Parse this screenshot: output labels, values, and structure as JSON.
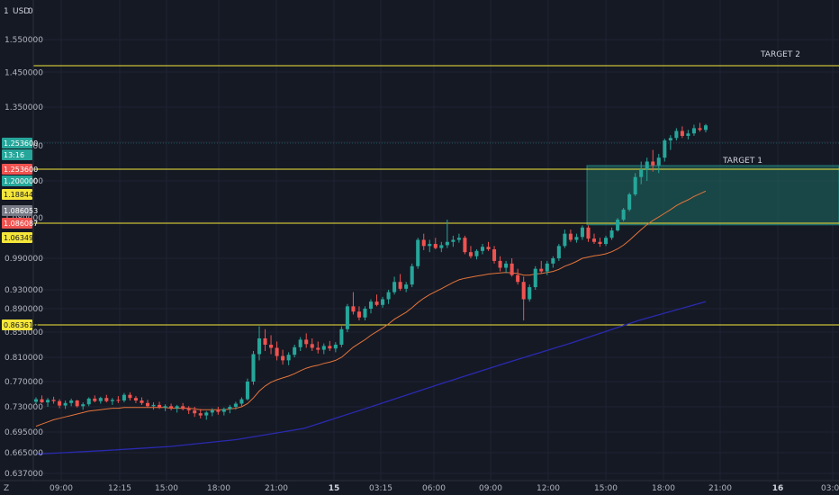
{
  "header": {
    "currency": "USD",
    "left_value": "1",
    "right_value": "0"
  },
  "timeframe_badge": "Z",
  "annotations": {
    "target1": "TARGET 1",
    "target2": "TARGET 2"
  },
  "colors": {
    "background": "#151924",
    "grid": "#1f2433",
    "up": "#26a69a",
    "down": "#ef5350",
    "ema_fast": "#e5743a",
    "ema_slow": "#2a2ab0",
    "level_line": "#f5e63a",
    "zone_fill": "#1e6b63",
    "text": "#b2b5be"
  },
  "chart_data": {
    "type": "candlestick",
    "title": "",
    "currency": "USD",
    "ylim": [
      0.627,
      1.6
    ],
    "y_ticks": [
      "1.550000",
      "1.450000",
      "1.350000",
      "1.250000",
      "1.200000",
      "1.080000",
      "0.990000",
      "0.930000",
      "0.890000",
      "0.850000",
      "0.810000",
      "0.770000",
      "0.730000",
      "0.695000",
      "0.665000",
      "0.637000"
    ],
    "x_ticks": [
      {
        "label": "09:00",
        "bold": false
      },
      {
        "label": "12:15",
        "bold": false
      },
      {
        "label": "15:00",
        "bold": false
      },
      {
        "label": "18:00",
        "bold": false
      },
      {
        "label": "21:00",
        "bold": false
      },
      {
        "label": "15",
        "bold": true
      },
      {
        "label": "03:15",
        "bold": false
      },
      {
        "label": "06:00",
        "bold": false
      },
      {
        "label": "09:00",
        "bold": false
      },
      {
        "label": "12:00",
        "bold": false
      },
      {
        "label": "15:00",
        "bold": false
      },
      {
        "label": "18:00",
        "bold": false
      },
      {
        "label": "21:00",
        "bold": false
      },
      {
        "label": "16",
        "bold": true
      },
      {
        "label": "03:00",
        "bold": false
      }
    ],
    "levels": [
      {
        "value": 1.469078,
        "label": "1.469078"
      },
      {
        "value": 1.25368,
        "label": "1.253680"
      },
      {
        "value": 1.086087,
        "label": "1.086087"
      },
      {
        "value": 0.863619,
        "label": "0.863619"
      }
    ],
    "price_tags": [
      {
        "value": 1.2536,
        "label": "1.253600",
        "color": "#26a69a"
      },
      {
        "value": 1.2359,
        "label": "13:16",
        "color": "#26a69a"
      },
      {
        "value": 1.2536,
        "label": "1.253600",
        "color": "#ef5350"
      },
      {
        "value": 1.2,
        "label": "1.200000",
        "color": "#26a69a"
      },
      {
        "value": 1.188441,
        "label": "1.188441",
        "color": "#f5e63a"
      },
      {
        "value": 1.086053,
        "label": "1.086053",
        "color": "#787b86"
      },
      {
        "value": 1.086087,
        "label": "1.086087",
        "color": "#ef5350"
      },
      {
        "value": 1.063499,
        "label": "1.063499",
        "color": "#f5e63a"
      },
      {
        "value": 0.863619,
        "label": "0.863619",
        "color": "#f5e63a"
      }
    ],
    "target_zone": {
      "y_top": 1.2,
      "y_bottom": 1.09
    },
    "candles": [
      [
        0.738,
        0.745,
        0.734,
        0.742
      ],
      [
        0.742,
        0.748,
        0.736,
        0.737
      ],
      [
        0.737,
        0.744,
        0.73,
        0.741
      ],
      [
        0.741,
        0.746,
        0.735,
        0.739
      ],
      [
        0.739,
        0.742,
        0.728,
        0.732
      ],
      [
        0.732,
        0.74,
        0.727,
        0.736
      ],
      [
        0.736,
        0.743,
        0.731,
        0.74
      ],
      [
        0.74,
        0.741,
        0.729,
        0.731
      ],
      [
        0.731,
        0.737,
        0.726,
        0.734
      ],
      [
        0.734,
        0.745,
        0.731,
        0.743
      ],
      [
        0.743,
        0.748,
        0.737,
        0.739
      ],
      [
        0.739,
        0.746,
        0.735,
        0.744
      ],
      [
        0.744,
        0.749,
        0.737,
        0.739
      ],
      [
        0.739,
        0.744,
        0.733,
        0.741
      ],
      [
        0.741,
        0.747,
        0.736,
        0.74
      ],
      [
        0.74,
        0.752,
        0.737,
        0.749
      ],
      [
        0.749,
        0.753,
        0.74,
        0.744
      ],
      [
        0.744,
        0.747,
        0.736,
        0.74
      ],
      [
        0.74,
        0.745,
        0.733,
        0.736
      ],
      [
        0.736,
        0.741,
        0.729,
        0.731
      ],
      [
        0.731,
        0.737,
        0.726,
        0.733
      ],
      [
        0.733,
        0.738,
        0.727,
        0.729
      ],
      [
        0.729,
        0.734,
        0.724,
        0.731
      ],
      [
        0.731,
        0.735,
        0.725,
        0.728
      ],
      [
        0.728,
        0.733,
        0.722,
        0.731
      ],
      [
        0.731,
        0.736,
        0.725,
        0.727
      ],
      [
        0.727,
        0.731,
        0.72,
        0.725
      ],
      [
        0.725,
        0.73,
        0.716,
        0.721
      ],
      [
        0.721,
        0.727,
        0.714,
        0.718
      ],
      [
        0.718,
        0.724,
        0.712,
        0.722
      ],
      [
        0.722,
        0.728,
        0.717,
        0.725
      ],
      [
        0.725,
        0.73,
        0.719,
        0.723
      ],
      [
        0.723,
        0.729,
        0.718,
        0.727
      ],
      [
        0.727,
        0.733,
        0.721,
        0.73
      ],
      [
        0.73,
        0.738,
        0.726,
        0.735
      ],
      [
        0.735,
        0.745,
        0.731,
        0.742
      ],
      [
        0.742,
        0.775,
        0.74,
        0.77
      ],
      [
        0.77,
        0.82,
        0.765,
        0.815
      ],
      [
        0.815,
        0.86,
        0.805,
        0.84
      ],
      [
        0.84,
        0.855,
        0.82,
        0.83
      ],
      [
        0.83,
        0.845,
        0.815,
        0.825
      ],
      [
        0.825,
        0.835,
        0.805,
        0.812
      ],
      [
        0.812,
        0.822,
        0.798,
        0.805
      ],
      [
        0.805,
        0.818,
        0.797,
        0.814
      ],
      [
        0.814,
        0.83,
        0.81,
        0.826
      ],
      [
        0.826,
        0.842,
        0.82,
        0.838
      ],
      [
        0.838,
        0.848,
        0.825,
        0.831
      ],
      [
        0.831,
        0.84,
        0.82,
        0.825
      ],
      [
        0.825,
        0.835,
        0.816,
        0.822
      ],
      [
        0.822,
        0.832,
        0.815,
        0.828
      ],
      [
        0.828,
        0.836,
        0.82,
        0.824
      ],
      [
        0.824,
        0.834,
        0.818,
        0.83
      ],
      [
        0.83,
        0.86,
        0.826,
        0.855
      ],
      [
        0.855,
        0.9,
        0.85,
        0.895
      ],
      [
        0.895,
        0.925,
        0.88,
        0.885
      ],
      [
        0.885,
        0.895,
        0.87,
        0.875
      ],
      [
        0.875,
        0.895,
        0.87,
        0.89
      ],
      [
        0.89,
        0.91,
        0.882,
        0.905
      ],
      [
        0.905,
        0.92,
        0.895,
        0.898
      ],
      [
        0.898,
        0.915,
        0.892,
        0.91
      ],
      [
        0.91,
        0.93,
        0.9,
        0.925
      ],
      [
        0.925,
        0.955,
        0.92,
        0.945
      ],
      [
        0.945,
        0.96,
        0.928,
        0.932
      ],
      [
        0.932,
        0.945,
        0.925,
        0.94
      ],
      [
        0.94,
        0.98,
        0.935,
        0.975
      ],
      [
        0.975,
        1.04,
        0.97,
        1.035
      ],
      [
        1.035,
        1.05,
        1.01,
        1.02
      ],
      [
        1.02,
        1.035,
        1.005,
        1.025
      ],
      [
        1.025,
        1.04,
        1.012,
        1.015
      ],
      [
        1.015,
        1.03,
        1.005,
        1.022
      ],
      [
        1.022,
        1.085,
        1.015,
        1.03
      ],
      [
        1.03,
        1.045,
        1.018,
        1.035
      ],
      [
        1.035,
        1.05,
        1.028,
        1.04
      ],
      [
        1.04,
        1.045,
        1.0,
        1.005
      ],
      [
        1.005,
        1.02,
        0.99,
        0.995
      ],
      [
        0.995,
        1.012,
        0.988,
        1.008
      ],
      [
        1.008,
        1.025,
        1.0,
        1.018
      ],
      [
        1.018,
        1.03,
        1.008,
        1.012
      ],
      [
        1.012,
        1.02,
        0.98,
        0.985
      ],
      [
        0.985,
        0.995,
        0.965,
        0.972
      ],
      [
        0.972,
        0.985,
        0.962,
        0.98
      ],
      [
        0.98,
        0.99,
        0.955,
        0.958
      ],
      [
        0.958,
        0.97,
        0.94,
        0.945
      ],
      [
        0.945,
        0.955,
        0.87,
        0.91
      ],
      [
        0.91,
        0.94,
        0.905,
        0.935
      ],
      [
        0.935,
        0.975,
        0.93,
        0.97
      ],
      [
        0.97,
        0.985,
        0.96,
        0.965
      ],
      [
        0.965,
        0.985,
        0.958,
        0.98
      ],
      [
        0.98,
        0.995,
        0.972,
        0.99
      ],
      [
        0.99,
        1.025,
        0.985,
        1.02
      ],
      [
        1.02,
        1.06,
        1.015,
        1.05
      ],
      [
        1.05,
        1.06,
        1.03,
        1.035
      ],
      [
        1.035,
        1.05,
        1.028,
        1.042
      ],
      [
        1.042,
        1.07,
        1.035,
        1.065
      ],
      [
        1.065,
        1.07,
        1.03,
        1.038
      ],
      [
        1.038,
        1.05,
        1.025,
        1.03
      ],
      [
        1.03,
        1.04,
        1.018,
        1.025
      ],
      [
        1.025,
        1.045,
        1.02,
        1.04
      ],
      [
        1.04,
        1.065,
        1.035,
        1.058
      ],
      [
        1.058,
        1.09,
        1.055,
        1.085
      ],
      [
        1.085,
        1.12,
        1.08,
        1.115
      ],
      [
        1.115,
        1.165,
        1.11,
        1.16
      ],
      [
        1.16,
        1.21,
        1.155,
        1.205
      ],
      [
        1.205,
        1.225,
        1.19,
        1.215
      ],
      [
        1.215,
        1.23,
        1.2,
        1.225
      ],
      [
        1.225,
        1.24,
        1.212,
        1.22
      ],
      [
        1.22,
        1.235,
        1.21,
        1.23
      ],
      [
        1.23,
        1.26,
        1.225,
        1.255
      ],
      [
        1.255,
        1.27,
        1.24,
        1.262
      ],
      [
        1.262,
        1.29,
        1.255,
        1.282
      ],
      [
        1.282,
        1.295,
        1.262,
        1.268
      ],
      [
        1.268,
        1.285,
        1.258,
        1.275
      ],
      [
        1.275,
        1.3,
        1.268,
        1.29
      ],
      [
        1.29,
        1.305,
        1.28,
        1.285
      ],
      [
        1.285,
        1.302,
        1.278,
        1.298
      ]
    ],
    "ema_fast": [
      0.703,
      0.706,
      0.709,
      0.712,
      0.714,
      0.716,
      0.718,
      0.72,
      0.722,
      0.724,
      0.725,
      0.726,
      0.727,
      0.728,
      0.728,
      0.729,
      0.729,
      0.729,
      0.729,
      0.729,
      0.729,
      0.729,
      0.729,
      0.728,
      0.728,
      0.728,
      0.728,
      0.727,
      0.726,
      0.726,
      0.726,
      0.726,
      0.726,
      0.727,
      0.728,
      0.73,
      0.735,
      0.744,
      0.755,
      0.763,
      0.769,
      0.773,
      0.776,
      0.779,
      0.783,
      0.788,
      0.792,
      0.795,
      0.797,
      0.8,
      0.802,
      0.805,
      0.81,
      0.818,
      0.826,
      0.832,
      0.838,
      0.845,
      0.851,
      0.857,
      0.864,
      0.872,
      0.878,
      0.884,
      0.892,
      0.903,
      0.912,
      0.92,
      0.926,
      0.932,
      0.938,
      0.944,
      0.949,
      0.952,
      0.954,
      0.956,
      0.958,
      0.96,
      0.961,
      0.962,
      0.963,
      0.962,
      0.961,
      0.958,
      0.958,
      0.96,
      0.961,
      0.963,
      0.965,
      0.969,
      0.975,
      0.979,
      0.984,
      0.99,
      0.993,
      0.996,
      0.998,
      1.001,
      1.006,
      1.013,
      1.022,
      1.034,
      1.047,
      1.06,
      1.072,
      1.083,
      1.093,
      1.104,
      1.115,
      1.127,
      1.136,
      1.144,
      1.154,
      1.162,
      1.17
    ],
    "ema_slow": [
      [
        0,
        0.663
      ],
      [
        0.1,
        0.668
      ],
      [
        0.2,
        0.674
      ],
      [
        0.3,
        0.684
      ],
      [
        0.4,
        0.7
      ],
      [
        0.5,
        0.73
      ],
      [
        0.6,
        0.765
      ],
      [
        0.7,
        0.8
      ],
      [
        0.8,
        0.833
      ],
      [
        0.9,
        0.87
      ],
      [
        1.0,
        0.905
      ]
    ]
  }
}
